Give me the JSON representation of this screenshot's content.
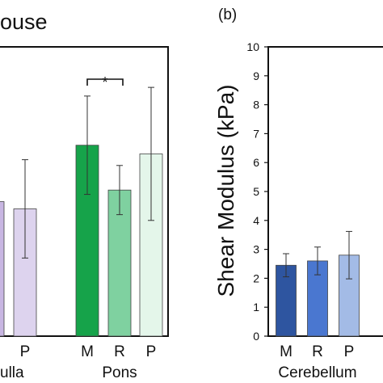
{
  "chart_data": [
    {
      "type": "bar",
      "title": "ouse",
      "groups": [
        {
          "label": "ulla",
          "categories": [
            "P"
          ],
          "values": [
            4.4
          ],
          "err": [
            1.7
          ],
          "colors": [
            "#ddd3ee"
          ],
          "partial": [
            {
              "color": "#c8b6e2",
              "value": 4.65
            }
          ]
        },
        {
          "label": "Pons",
          "categories": [
            "M",
            "R",
            "P"
          ],
          "values": [
            6.6,
            5.05,
            6.3
          ],
          "err": [
            1.7,
            0.85,
            2.3
          ],
          "colors": [
            "#16a34a",
            "#7fd1a0",
            "#e4f6ea"
          ]
        }
      ],
      "significance": {
        "label": "*",
        "between": [
          "M",
          "R"
        ],
        "group": "Pons"
      },
      "ylim": [
        0,
        10
      ]
    },
    {
      "type": "bar",
      "panel_label": "(b)",
      "ylabel": "Shear Modulus (kPa)",
      "ylim": [
        0,
        10
      ],
      "yticks": [
        "0",
        "1",
        "2",
        "3",
        "4",
        "5",
        "6",
        "7",
        "8",
        "9",
        "10"
      ],
      "groups": [
        {
          "label": "Cerebellum",
          "categories": [
            "M",
            "R",
            "P"
          ],
          "values": [
            2.45,
            2.6,
            2.8
          ],
          "err": [
            0.4,
            0.48,
            0.82
          ],
          "colors": [
            "#2e55a0",
            "#4a77d0",
            "#a3bbe6"
          ]
        }
      ]
    }
  ]
}
